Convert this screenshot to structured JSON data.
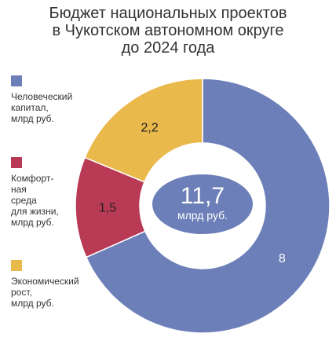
{
  "title_lines": [
    "Бюджет национальных проектов",
    "в Чукотском автономном округе",
    "до 2024 года"
  ],
  "center_label": {
    "value": "11,7",
    "unit": "млрд руб."
  },
  "legend": [
    {
      "label": "Человеческий\nкапитал,\nмлрд руб.",
      "color": "#6c7fb8"
    },
    {
      "label": "Комфорт-\nная\nсреда\nдля жизни,\nмлрд руб.",
      "color": "#b83a55"
    },
    {
      "label": "Экономический\nрост,\nмлрд руб.",
      "color": "#e9b94b"
    }
  ],
  "chart_data": {
    "type": "pie",
    "variant": "donut",
    "total_label": "11,7",
    "unit": "млрд руб.",
    "slices": [
      {
        "name": "Человеческий капитал, млрд руб.",
        "value": 8,
        "label": "8",
        "color": "#6c7fb8"
      },
      {
        "name": "Комфортная среда для жизни, млрд руб.",
        "value": 1.5,
        "label": "1,5",
        "color": "#b83a55"
      },
      {
        "name": "Экономический рост, млрд руб.",
        "value": 2.2,
        "label": "2,2",
        "color": "#e9b94b"
      }
    ],
    "start_angle": "top, clockwise",
    "legend_position": "left"
  }
}
